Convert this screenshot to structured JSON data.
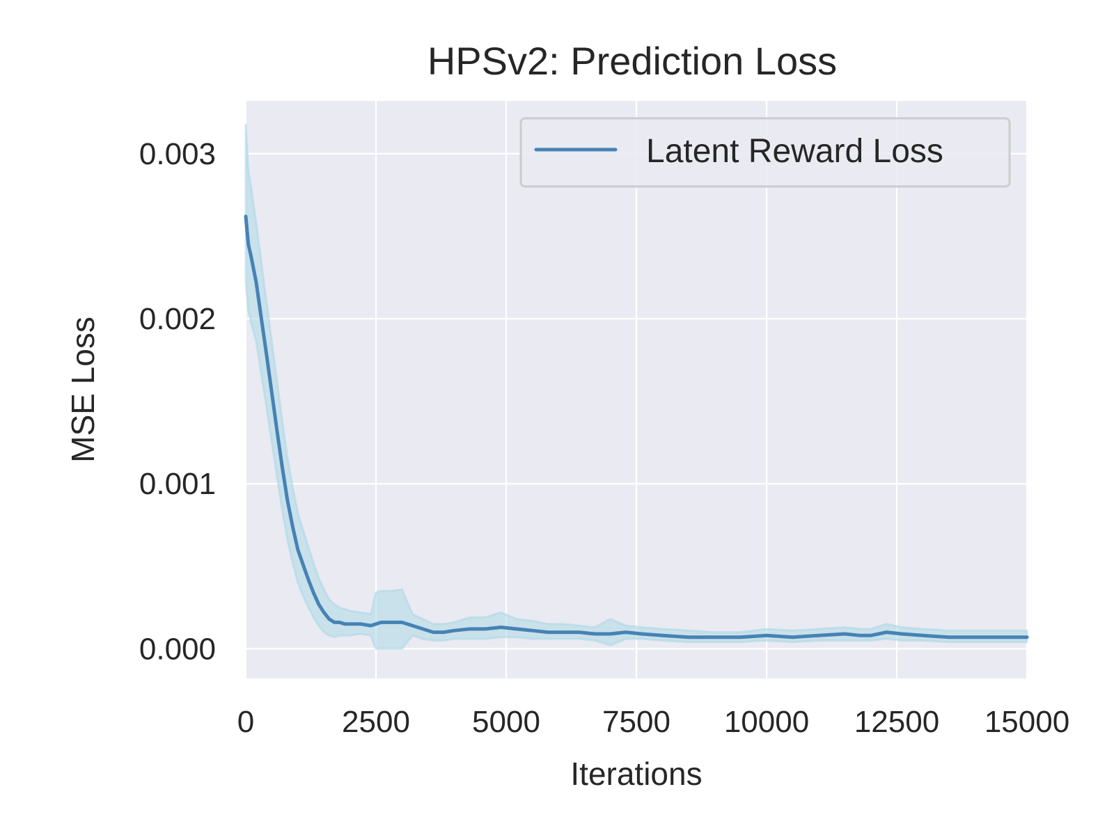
{
  "chart_data": {
    "type": "line",
    "title": "HPSv2: Prediction Loss",
    "xlabel": "Iterations",
    "ylabel": "MSE Loss",
    "xlim": [
      0,
      15000
    ],
    "ylim": [
      -0.00018,
      0.00332
    ],
    "x_ticks": [
      0,
      2500,
      5000,
      7500,
      10000,
      12500,
      15000
    ],
    "x_tick_labels": [
      "0",
      "2500",
      "5000",
      "7500",
      "10000",
      "12500",
      "15000"
    ],
    "y_ticks": [
      0.0,
      0.001,
      0.002,
      0.003
    ],
    "y_tick_labels": [
      "0.000",
      "0.001",
      "0.002",
      "0.003"
    ],
    "grid": true,
    "legend_position": "top-right",
    "colors": {
      "background": "#eaeaf2",
      "grid": "#ffffff",
      "line": "#4682b4",
      "band": "#add8e6"
    },
    "series": [
      {
        "name": "Latent Reward Loss",
        "x": [
          0,
          50,
          100,
          200,
          300,
          400,
          500,
          600,
          700,
          800,
          900,
          1000,
          1100,
          1200,
          1300,
          1400,
          1500,
          1600,
          1700,
          1800,
          1900,
          2000,
          2200,
          2400,
          2500,
          2600,
          2800,
          3000,
          3200,
          3400,
          3600,
          3800,
          4000,
          4300,
          4600,
          4900,
          5200,
          5500,
          5800,
          6100,
          6400,
          6700,
          7000,
          7300,
          7600,
          8000,
          8500,
          9000,
          9500,
          10000,
          10500,
          11000,
          11500,
          11800,
          12000,
          12300,
          12600,
          13000,
          13500,
          14000,
          14500,
          15000
        ],
        "y": [
          0.00262,
          0.00245,
          0.00238,
          0.00222,
          0.002,
          0.00178,
          0.00155,
          0.00132,
          0.0011,
          0.0009,
          0.00074,
          0.0006,
          0.00051,
          0.00042,
          0.00034,
          0.00027,
          0.00022,
          0.00018,
          0.00016,
          0.00016,
          0.00015,
          0.00015,
          0.00015,
          0.00014,
          0.00015,
          0.00016,
          0.00016,
          0.00016,
          0.00014,
          0.00012,
          0.0001,
          0.0001,
          0.00011,
          0.00012,
          0.00012,
          0.00013,
          0.00012,
          0.00011,
          0.0001,
          0.0001,
          0.0001,
          9e-05,
          9e-05,
          0.0001,
          9e-05,
          8e-05,
          7e-05,
          7e-05,
          7e-05,
          8e-05,
          7e-05,
          8e-05,
          9e-05,
          8e-05,
          8e-05,
          0.0001,
          9e-05,
          8e-05,
          7e-05,
          7e-05,
          7e-05,
          7e-05
        ],
        "lower": [
          0.00222,
          0.00205,
          0.00198,
          0.00186,
          0.00166,
          0.00146,
          0.00125,
          0.00104,
          0.00084,
          0.00066,
          0.00052,
          0.0004,
          0.00032,
          0.00025,
          0.00019,
          0.00014,
          0.0001,
          8e-05,
          7e-05,
          8e-05,
          8e-05,
          8e-05,
          9e-05,
          8e-05,
          0.0,
          0.0,
          0.0,
          0.0,
          8e-05,
          6e-05,
          5e-05,
          5e-05,
          6e-05,
          6e-05,
          6e-05,
          7e-05,
          7e-05,
          6e-05,
          6e-05,
          6e-05,
          6e-05,
          5e-05,
          2e-05,
          6e-05,
          6e-05,
          5e-05,
          4e-05,
          4e-05,
          4e-05,
          5e-05,
          4e-05,
          5e-05,
          5e-05,
          5e-05,
          5e-05,
          6e-05,
          5e-05,
          5e-05,
          4e-05,
          4e-05,
          4e-05,
          4e-05
        ],
        "upper": [
          0.00318,
          0.0029,
          0.0028,
          0.00258,
          0.00234,
          0.0021,
          0.00186,
          0.00162,
          0.00138,
          0.00116,
          0.00098,
          0.00082,
          0.00072,
          0.00062,
          0.00052,
          0.00043,
          0.00036,
          0.0003,
          0.00027,
          0.00025,
          0.00024,
          0.00023,
          0.00022,
          0.00021,
          0.00034,
          0.00035,
          0.00035,
          0.00036,
          0.00021,
          0.00018,
          0.00015,
          0.00015,
          0.00016,
          0.00019,
          0.00019,
          0.00022,
          0.00018,
          0.00017,
          0.00015,
          0.00015,
          0.00014,
          0.00013,
          0.00018,
          0.00014,
          0.00013,
          0.00012,
          0.00011,
          0.0001,
          0.0001,
          0.00012,
          0.00011,
          0.00012,
          0.00013,
          0.00012,
          0.00012,
          0.00015,
          0.00013,
          0.00012,
          0.00011,
          0.00011,
          0.00011,
          0.00011
        ]
      }
    ]
  }
}
